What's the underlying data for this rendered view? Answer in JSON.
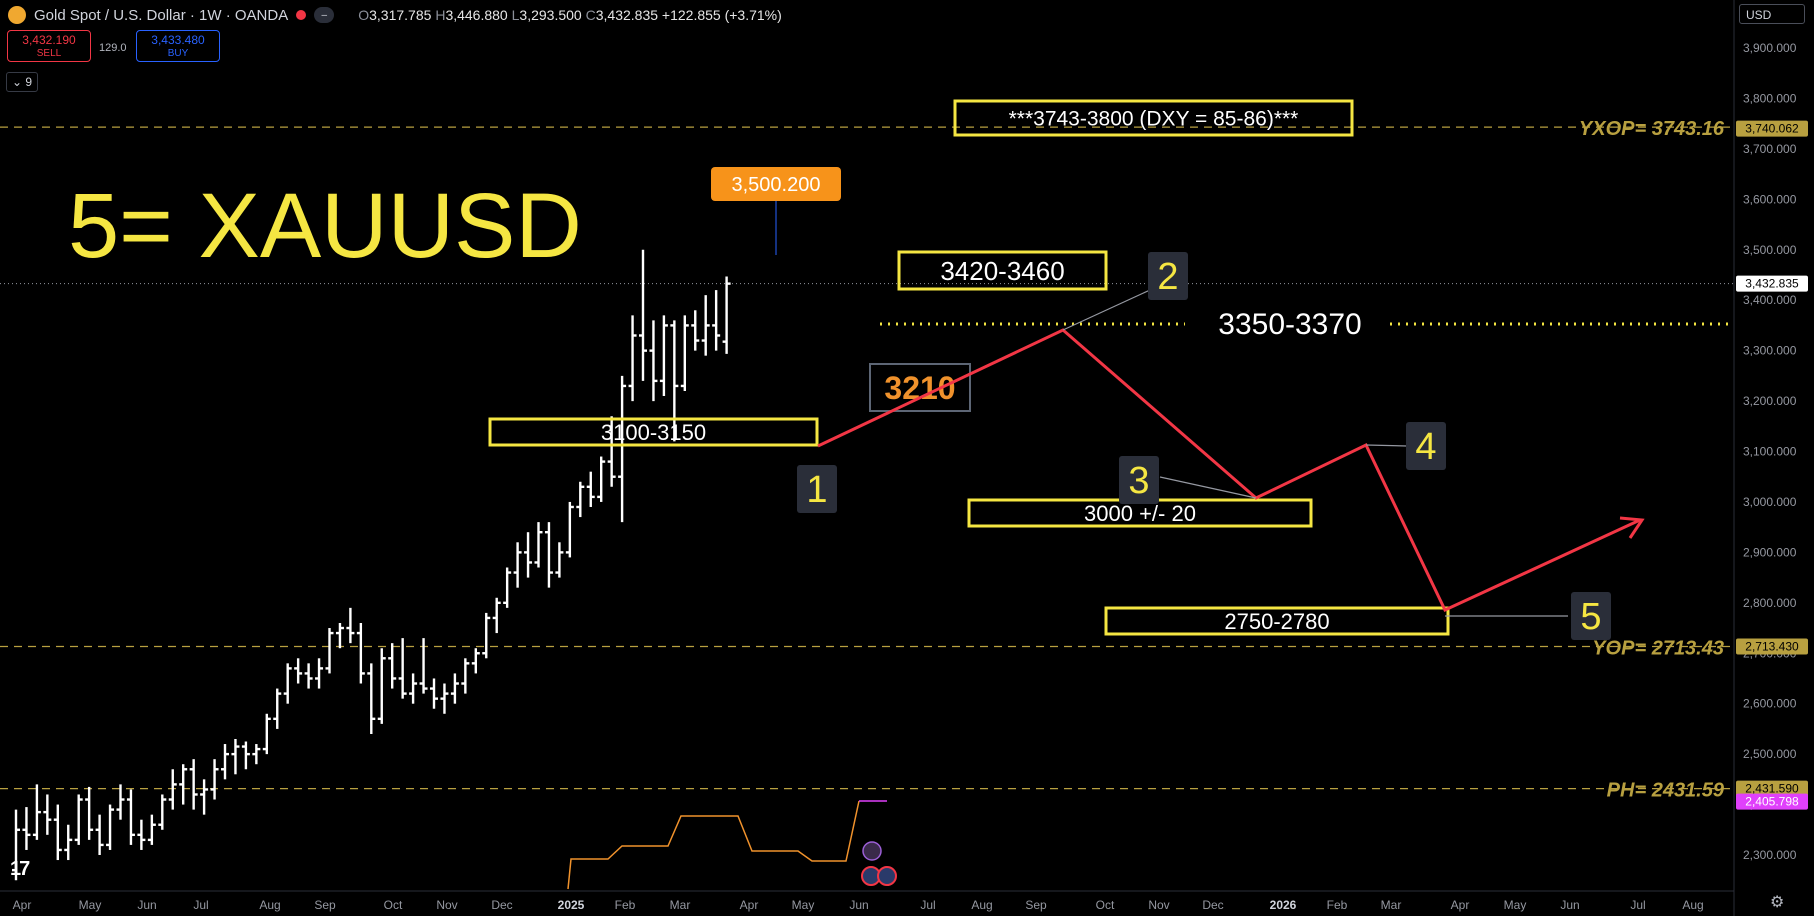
{
  "header": {
    "symbol": "Gold Spot / U.S. Dollar · 1W · OANDA",
    "open_label": "O",
    "open": "3,317.785",
    "high_label": "H",
    "high": "3,446.880",
    "low_label": "L",
    "low": "3,293.500",
    "close_label": "C",
    "close": "3,432.835",
    "change": "+122.855 (+3.71%)"
  },
  "trade": {
    "sell_price": "3,432.190",
    "sell_label": "SELL",
    "spread": "129.0",
    "buy_price": "3,433.480",
    "buy_label": "BUY"
  },
  "intervals_label": "9",
  "currency": "USD",
  "colors": {
    "background": "#000000",
    "candle": "#ffffff",
    "annotation_box": "#f5e642",
    "path": "#f23645",
    "level_line": "#b8a040",
    "indicator": "#f0922c",
    "indicator_end": "#e040fb",
    "high_badge": "#f7931a"
  },
  "chart_data": {
    "type": "ohlc",
    "symbol": "XAUUSD",
    "interval": "1W",
    "y_axis": {
      "range": [
        2230,
        3990
      ],
      "ticks": [
        2300,
        2400,
        2500,
        2600,
        2700,
        2800,
        2900,
        3000,
        3100,
        3200,
        3300,
        3400,
        3500,
        3600,
        3700,
        3800,
        3900
      ],
      "tick_labels": [
        "2,300.000",
        "2,400.000",
        "2,500.000",
        "2,600.000",
        "2,700.000",
        "2,800.000",
        "2,900.000",
        "3,000.000",
        "3,100.000",
        "3,200.000",
        "3,300.000",
        "3,400.000",
        "3,500.000",
        "3,600.000",
        "3,700.000",
        "3,800.000",
        "3,900.000"
      ]
    },
    "x_axis": {
      "labels": [
        "Apr",
        "May",
        "Jun",
        "Jul",
        "Aug",
        "Sep",
        "Oct",
        "Nov",
        "Dec",
        "2025",
        "Feb",
        "Mar",
        "Apr",
        "May",
        "Jun",
        "Jul",
        "Aug",
        "Sep",
        "Oct",
        "Nov",
        "Dec",
        "2026",
        "Feb",
        "Mar",
        "Apr",
        "May",
        "Jun",
        "Jul",
        "Aug"
      ],
      "bold": [
        "2025",
        "2026"
      ]
    },
    "price_labels": [
      {
        "value": 3740.062,
        "text": "3,740.062",
        "style": "level"
      },
      {
        "value": 3432.835,
        "text": "3,432.835",
        "style": "last"
      },
      {
        "value": 2713.43,
        "text": "2,713.430",
        "style": "level"
      },
      {
        "value": 2431.59,
        "text": "2,431.590",
        "style": "level"
      },
      {
        "value": 2405.798,
        "text": "2,405.798",
        "style": "indicator"
      }
    ],
    "levels": [
      {
        "name": "YXOP",
        "value": 3743.16,
        "label": "YXOP= 3743.16"
      },
      {
        "name": "YOP",
        "value": 2713.43,
        "label": "YOP= 2713.43"
      },
      {
        "name": "PH",
        "value": 2431.59,
        "label": "PH= 2431.59"
      }
    ],
    "candles": [
      [
        2270,
        2390,
        2250,
        2350
      ],
      [
        2350,
        2395,
        2310,
        2340
      ],
      [
        2340,
        2440,
        2330,
        2385
      ],
      [
        2385,
        2420,
        2340,
        2370
      ],
      [
        2370,
        2400,
        2290,
        2310
      ],
      [
        2310,
        2360,
        2290,
        2330
      ],
      [
        2330,
        2420,
        2320,
        2410
      ],
      [
        2410,
        2435,
        2330,
        2350
      ],
      [
        2350,
        2380,
        2300,
        2320
      ],
      [
        2320,
        2400,
        2310,
        2390
      ],
      [
        2390,
        2440,
        2370,
        2410
      ],
      [
        2410,
        2430,
        2320,
        2340
      ],
      [
        2340,
        2370,
        2310,
        2330
      ],
      [
        2330,
        2380,
        2320,
        2360
      ],
      [
        2360,
        2420,
        2350,
        2410
      ],
      [
        2410,
        2470,
        2390,
        2440
      ],
      [
        2440,
        2480,
        2400,
        2470
      ],
      [
        2470,
        2490,
        2390,
        2420
      ],
      [
        2420,
        2450,
        2380,
        2430
      ],
      [
        2430,
        2490,
        2410,
        2470
      ],
      [
        2470,
        2520,
        2450,
        2500
      ],
      [
        2500,
        2530,
        2460,
        2515
      ],
      [
        2515,
        2525,
        2470,
        2500
      ],
      [
        2500,
        2520,
        2480,
        2510
      ],
      [
        2510,
        2580,
        2500,
        2570
      ],
      [
        2570,
        2630,
        2550,
        2620
      ],
      [
        2620,
        2680,
        2600,
        2670
      ],
      [
        2670,
        2690,
        2640,
        2660
      ],
      [
        2660,
        2680,
        2630,
        2650
      ],
      [
        2650,
        2690,
        2630,
        2670
      ],
      [
        2670,
        2750,
        2660,
        2740
      ],
      [
        2740,
        2760,
        2710,
        2750
      ],
      [
        2750,
        2790,
        2720,
        2740
      ],
      [
        2740,
        2760,
        2640,
        2660
      ],
      [
        2660,
        2680,
        2540,
        2570
      ],
      [
        2570,
        2710,
        2560,
        2690
      ],
      [
        2690,
        2720,
        2630,
        2650
      ],
      [
        2650,
        2730,
        2610,
        2620
      ],
      [
        2620,
        2660,
        2600,
        2640
      ],
      [
        2640,
        2730,
        2620,
        2630
      ],
      [
        2630,
        2650,
        2590,
        2610
      ],
      [
        2610,
        2640,
        2580,
        2620
      ],
      [
        2620,
        2660,
        2600,
        2640
      ],
      [
        2640,
        2690,
        2620,
        2680
      ],
      [
        2680,
        2710,
        2660,
        2700
      ],
      [
        2700,
        2780,
        2690,
        2770
      ],
      [
        2770,
        2810,
        2740,
        2800
      ],
      [
        2800,
        2870,
        2790,
        2860
      ],
      [
        2860,
        2920,
        2830,
        2900
      ],
      [
        2900,
        2940,
        2850,
        2880
      ],
      [
        2880,
        2960,
        2870,
        2940
      ],
      [
        2940,
        2960,
        2830,
        2860
      ],
      [
        2860,
        2920,
        2850,
        2900
      ],
      [
        2900,
        3000,
        2890,
        2990
      ],
      [
        2990,
        3040,
        2970,
        3030
      ],
      [
        3030,
        3060,
        2990,
        3010
      ],
      [
        3010,
        3090,
        3000,
        3080
      ],
      [
        3080,
        3170,
        3030,
        3050
      ],
      [
        3050,
        3250,
        2960,
        3230
      ],
      [
        3230,
        3370,
        3200,
        3330
      ],
      [
        3330,
        3500,
        3240,
        3300
      ],
      [
        3300,
        3360,
        3200,
        3240
      ],
      [
        3240,
        3370,
        3210,
        3350
      ],
      [
        3350,
        3360,
        3120,
        3230
      ],
      [
        3230,
        3370,
        3220,
        3350
      ],
      [
        3350,
        3380,
        3300,
        3320
      ],
      [
        3320,
        3410,
        3290,
        3350
      ],
      [
        3350,
        3420,
        3300,
        3330
      ],
      [
        3317.785,
        3446.88,
        3293.5,
        3432.835
      ]
    ],
    "annotations": [
      {
        "type": "box",
        "text": "***3743-3800 (DXY = 85-86)***"
      },
      {
        "type": "box",
        "text": "3420-3460"
      },
      {
        "type": "box",
        "text": "3100-3150"
      },
      {
        "type": "box",
        "text": "3000 +/- 20"
      },
      {
        "type": "box",
        "text": "2750-2780"
      },
      {
        "type": "text",
        "text": "3350-3370"
      },
      {
        "type": "callout",
        "text": "3210"
      },
      {
        "type": "badge",
        "text": "3,500.200"
      },
      {
        "type": "title",
        "text": "5= XAUUSD"
      }
    ],
    "wave_labels": [
      "1",
      "2",
      "3",
      "4",
      "5"
    ],
    "projection_path": [
      3120,
      3350,
      3010,
      3120,
      2780,
      2990
    ]
  }
}
